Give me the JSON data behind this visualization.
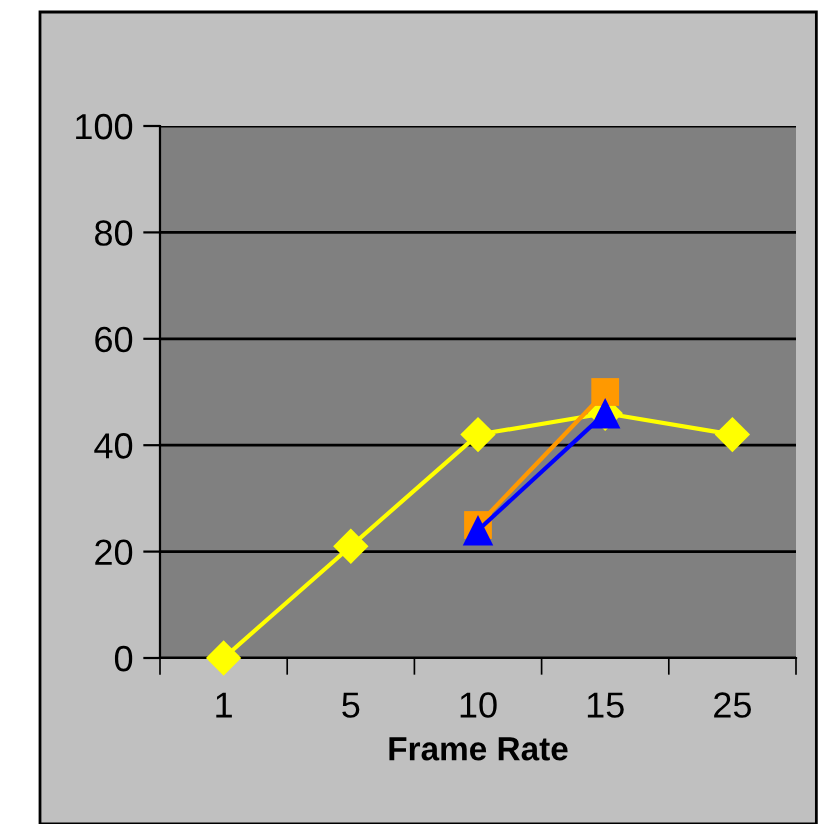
{
  "chart_data": {
    "type": "line",
    "xlabel": "Frame Rate",
    "categories": [
      "1",
      "5",
      "10",
      "15",
      "25"
    ],
    "series": [
      {
        "color": "#ffff00",
        "marker": "diamond",
        "values": [
          0,
          21,
          42,
          46,
          42
        ]
      },
      {
        "color": "#ff9900",
        "marker": "square",
        "values": [
          null,
          null,
          25,
          50,
          null
        ]
      },
      {
        "color": "#0000ff",
        "marker": "triangle",
        "values": [
          null,
          null,
          24,
          46,
          null
        ]
      }
    ],
    "ylim": [
      0,
      100
    ],
    "yticks": [
      0,
      20,
      40,
      60,
      80,
      100
    ],
    "grid": "y",
    "legend": false,
    "line_style": "solid"
  }
}
